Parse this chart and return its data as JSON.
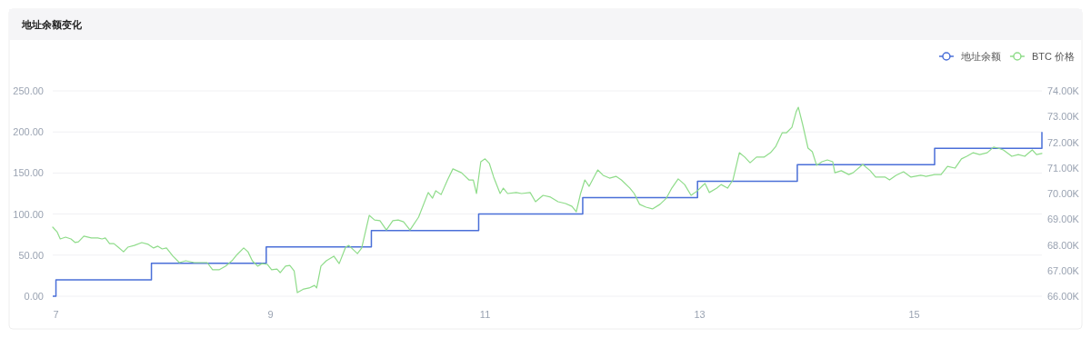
{
  "chart_data": {
    "type": "line",
    "title": "地址余额变化",
    "xlim": [
      6.97,
      16.19
    ],
    "xticks": [
      7,
      9,
      11,
      13,
      15
    ],
    "ylim": [
      0,
      250
    ],
    "yticks": [
      {
        "value": 0,
        "label": "0.00"
      },
      {
        "value": 50,
        "label": "50.00"
      },
      {
        "value": 100,
        "label": "100.00"
      },
      {
        "value": 150,
        "label": "150.00"
      },
      {
        "value": 200,
        "label": "200.00"
      },
      {
        "value": 250,
        "label": "250.00"
      }
    ],
    "y2lim": [
      66,
      74
    ],
    "y2ticks": [
      {
        "value": 66,
        "label": "66.00K"
      },
      {
        "value": 67,
        "label": "67.00K"
      },
      {
        "value": 68,
        "label": "68.00K"
      },
      {
        "value": 69,
        "label": "69.00K"
      },
      {
        "value": 70,
        "label": "70.00K"
      },
      {
        "value": 71,
        "label": "71.00K"
      },
      {
        "value": 72,
        "label": "72.00K"
      },
      {
        "value": 73,
        "label": "73.00K"
      },
      {
        "value": 74,
        "label": "74.00K"
      }
    ],
    "grid": "y",
    "legend": "top right",
    "series": [
      {
        "name": "地址余额",
        "type": "step",
        "color": "#4a6fd8",
        "x": [
          6.97,
          7.0,
          7.89,
          8.96,
          9.94,
          10.94,
          11.91,
          12.98,
          13.91,
          15.19,
          16.19
        ],
        "values": [
          0,
          20,
          40,
          60,
          80,
          100,
          120,
          140,
          160,
          180,
          200
        ]
      },
      {
        "name": "BTC 价格",
        "axis": "y2",
        "color": "#8fdc8a",
        "x": [
          6.97,
          7.01,
          7.04,
          7.09,
          7.14,
          7.18,
          7.21,
          7.26,
          7.33,
          7.39,
          7.43,
          7.46,
          7.5,
          7.54,
          7.58,
          7.63,
          7.67,
          7.73,
          7.8,
          7.86,
          7.91,
          7.95,
          7.99,
          8.03,
          8.09,
          8.15,
          8.21,
          8.29,
          8.41,
          8.46,
          8.52,
          8.58,
          8.64,
          8.69,
          8.75,
          8.79,
          8.83,
          8.88,
          8.92,
          8.97,
          9.01,
          9.06,
          9.09,
          9.14,
          9.18,
          9.22,
          9.25,
          9.31,
          9.36,
          9.41,
          9.43,
          9.47,
          9.52,
          9.59,
          9.64,
          9.7,
          9.73,
          9.81,
          9.85,
          9.92,
          9.97,
          10.02,
          10.08,
          10.14,
          10.19,
          10.24,
          10.3,
          10.38,
          10.47,
          10.51,
          10.54,
          10.59,
          10.65,
          10.7,
          10.78,
          10.85,
          10.89,
          10.92,
          10.96,
          11.0,
          11.04,
          11.08,
          11.14,
          11.17,
          11.21,
          11.29,
          11.34,
          11.42,
          11.47,
          11.54,
          11.61,
          11.68,
          11.75,
          11.81,
          11.85,
          11.89,
          11.93,
          11.97,
          12.05,
          12.1,
          12.16,
          12.22,
          12.27,
          12.35,
          12.39,
          12.44,
          12.5,
          12.56,
          12.63,
          12.69,
          12.74,
          12.8,
          12.86,
          12.92,
          12.98,
          13.03,
          13.05,
          13.09,
          13.16,
          13.2,
          13.26,
          13.31,
          13.37,
          13.42,
          13.47,
          13.53,
          13.6,
          13.66,
          13.71,
          13.77,
          13.81,
          13.86,
          13.9,
          13.92,
          13.96,
          14.01,
          14.05,
          14.09,
          14.14,
          14.19,
          14.24,
          14.26,
          14.32,
          14.39,
          14.43,
          14.52,
          14.59,
          14.64,
          14.73,
          14.77,
          14.83,
          14.9,
          14.97,
          15.06,
          15.11,
          15.19,
          15.25,
          15.31,
          15.38,
          15.44,
          15.49,
          15.55,
          15.61,
          15.68,
          15.74,
          15.78,
          15.83,
          15.91,
          15.97,
          16.03,
          16.1,
          16.14,
          16.19
        ],
        "values": [
          68.69,
          68.51,
          68.23,
          68.3,
          68.23,
          68.09,
          68.12,
          68.34,
          68.27,
          68.27,
          68.23,
          68.27,
          68.05,
          68.05,
          67.91,
          67.73,
          67.91,
          67.98,
          68.09,
          68.02,
          67.88,
          67.95,
          67.84,
          67.88,
          67.56,
          67.31,
          67.38,
          67.31,
          67.31,
          67.03,
          67.03,
          67.17,
          67.38,
          67.63,
          67.88,
          67.73,
          67.38,
          67.17,
          67.27,
          67.24,
          67.03,
          67.06,
          66.92,
          67.17,
          67.2,
          66.99,
          66.14,
          66.28,
          66.32,
          66.42,
          66.32,
          67.17,
          67.38,
          67.56,
          67.27,
          67.91,
          67.98,
          67.66,
          67.88,
          69.15,
          68.97,
          68.94,
          68.58,
          68.94,
          68.97,
          68.9,
          68.58,
          69.08,
          70.04,
          69.82,
          70.11,
          69.96,
          70.53,
          70.96,
          70.81,
          70.53,
          70.53,
          70.0,
          71.24,
          71.35,
          71.17,
          70.64,
          70.0,
          70.21,
          70.0,
          70.04,
          70.0,
          70.04,
          69.68,
          69.93,
          69.86,
          69.68,
          69.61,
          69.5,
          69.29,
          70.0,
          70.53,
          70.28,
          70.92,
          70.71,
          70.6,
          70.67,
          70.53,
          70.21,
          70.0,
          69.58,
          69.47,
          69.4,
          69.58,
          69.82,
          70.21,
          70.57,
          70.35,
          69.93,
          70.11,
          70.32,
          70.39,
          70.04,
          70.21,
          70.35,
          70.21,
          70.53,
          71.59,
          71.42,
          71.2,
          71.42,
          71.42,
          71.59,
          71.84,
          72.37,
          72.37,
          72.58,
          73.19,
          73.36,
          72.69,
          71.77,
          71.63,
          71.1,
          71.24,
          71.31,
          71.24,
          70.81,
          70.89,
          70.74,
          70.81,
          71.13,
          70.89,
          70.64,
          70.64,
          70.53,
          70.71,
          70.85,
          70.64,
          70.71,
          70.67,
          70.74,
          70.74,
          71.06,
          70.99,
          71.35,
          71.45,
          71.59,
          71.52,
          71.59,
          71.81,
          71.77,
          71.7,
          71.45,
          71.52,
          71.45,
          71.7,
          71.52,
          71.56
        ]
      }
    ]
  }
}
